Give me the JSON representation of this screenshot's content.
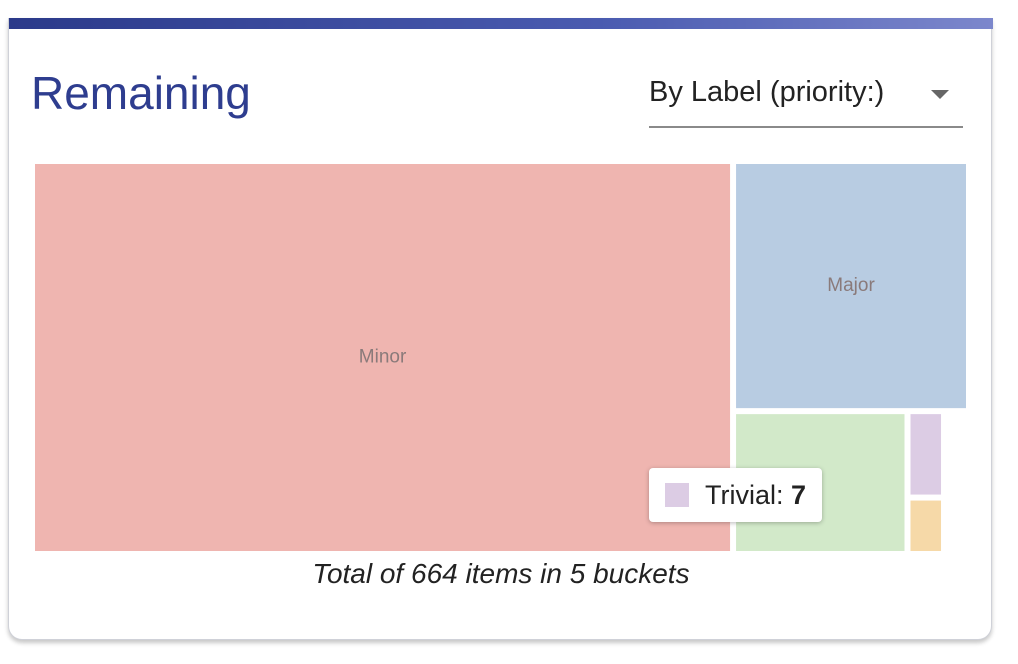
{
  "card": {
    "title": "Remaining",
    "group_by_select": {
      "value": "By Label (priority:)"
    },
    "footer": "Total of 664 items in 5 buckets"
  },
  "tooltip": {
    "label": "Trivial:",
    "value": "7",
    "swatch_color": "#dccce4"
  },
  "chart_data": {
    "type": "treemap",
    "title": "",
    "total_items": 664,
    "bucket_count": 5,
    "buckets": [
      {
        "name": "Minor",
        "value": 500,
        "color": "#efb5b0",
        "label_shown": true
      },
      {
        "name": "Major",
        "value": 106,
        "color": "#b8cce2",
        "label_shown": true
      },
      {
        "name": "",
        "value": 44,
        "color": "#d2e9c9",
        "label_shown": false
      },
      {
        "name": "Trivial",
        "value": 7,
        "color": "#dccce4",
        "label_shown": false
      },
      {
        "name": "",
        "value": 7,
        "color": "#f6d9a8",
        "label_shown": false
      }
    ]
  }
}
